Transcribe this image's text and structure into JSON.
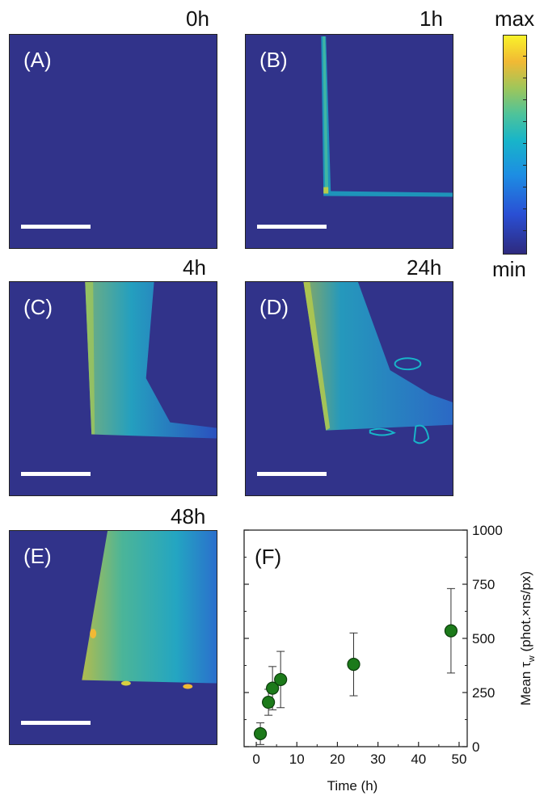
{
  "panels": [
    {
      "letter": "(A)",
      "time": "0h"
    },
    {
      "letter": "(B)",
      "time": "1h"
    },
    {
      "letter": "(C)",
      "time": "4h"
    },
    {
      "letter": "(D)",
      "time": "24h"
    },
    {
      "letter": "(E)",
      "time": "48h"
    },
    {
      "letter": "(F)"
    }
  ],
  "colorbar": {
    "max_label": "max",
    "min_label": "min"
  },
  "colors": {
    "image_background": "#31338a",
    "marker_fill": "#1c7a1a",
    "marker_edge": "#0b3d0b",
    "colormap_low": "#2e2a7e",
    "colormap_mid": "#18b5c9",
    "colormap_high": "#f9f22a"
  },
  "chart_data": {
    "type": "scatter",
    "title": "(F)",
    "xlabel": "Time (h)",
    "ylabel_main": "Mean τ",
    "ylabel_sub": "w",
    "ylabel_units": " (phot.×ns/px)",
    "xlim": [
      -3,
      52
    ],
    "ylim": [
      0,
      1000
    ],
    "xticks": [
      0,
      10,
      20,
      30,
      40,
      50
    ],
    "yticks": [
      0,
      250,
      500,
      750,
      1000
    ],
    "x": [
      1,
      3,
      4,
      6,
      24,
      48
    ],
    "y": [
      60,
      205,
      270,
      310,
      380,
      535
    ],
    "error": [
      50,
      60,
      100,
      130,
      145,
      195
    ],
    "yaxis_position": "right",
    "grid": false
  }
}
